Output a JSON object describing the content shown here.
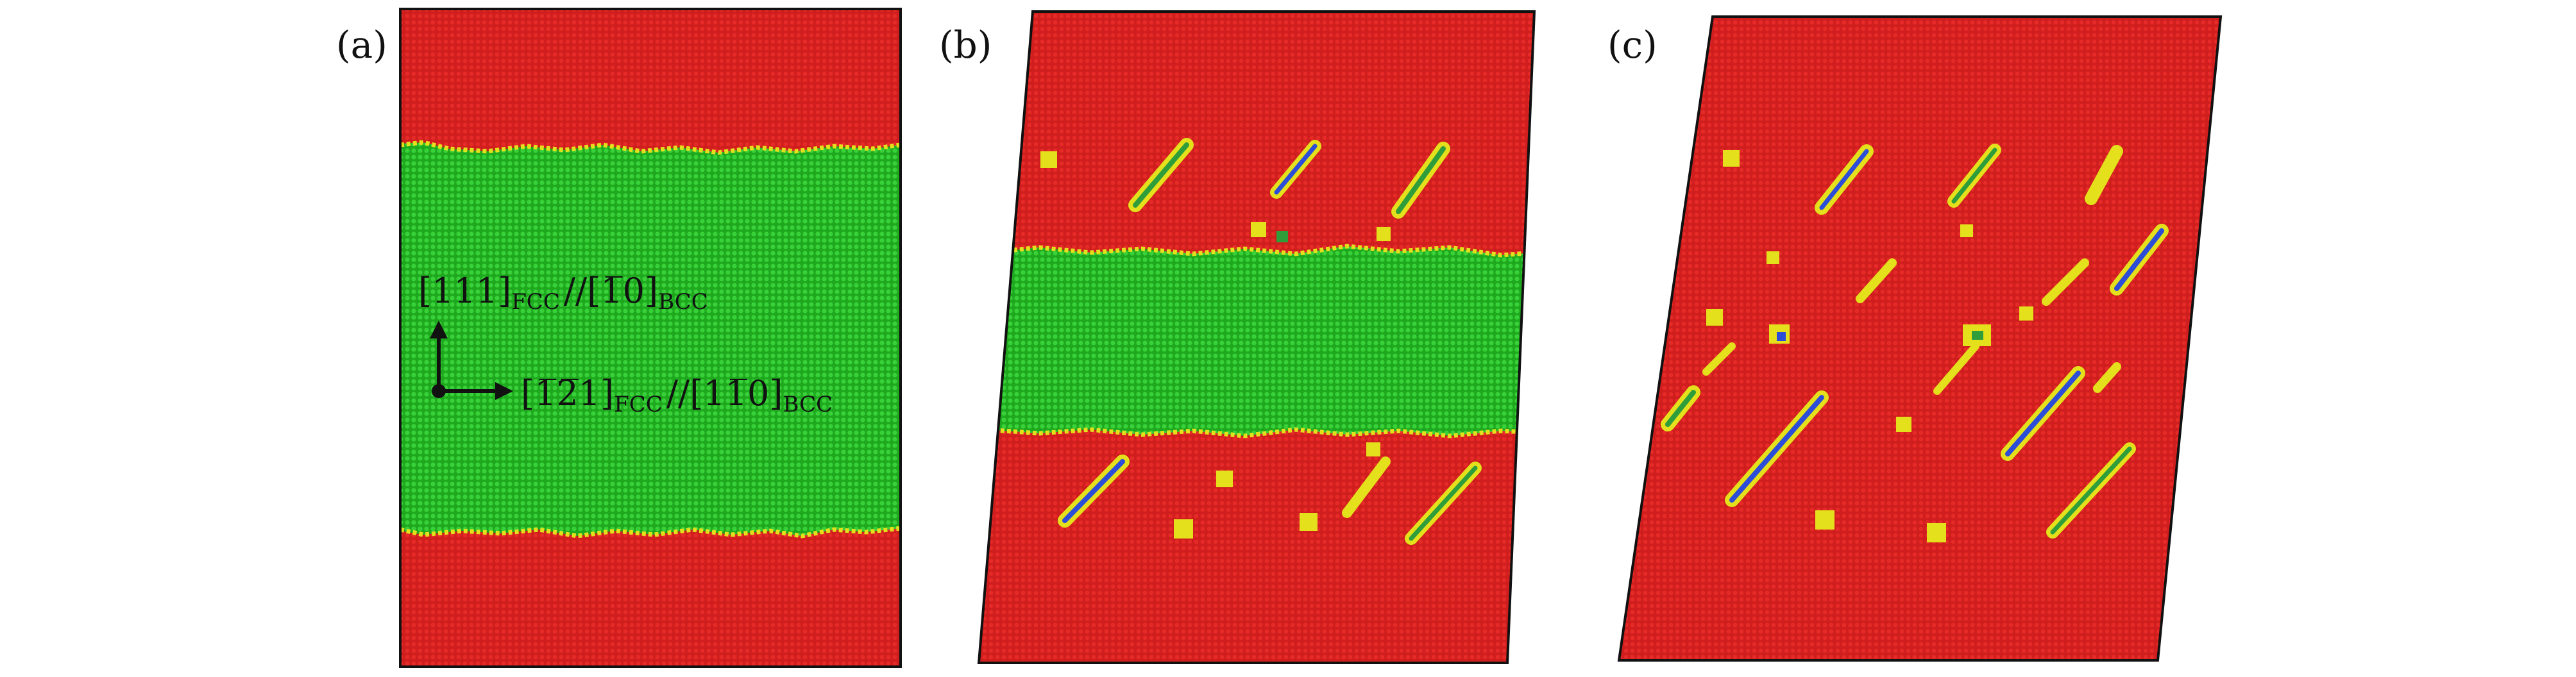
{
  "figure": {
    "panels": [
      {
        "label": "(a)"
      },
      {
        "label": "(b)"
      },
      {
        "label": "(c)"
      }
    ],
    "orientation": {
      "vertical": {
        "miller": "[111]",
        "sub1": "FCC",
        "sep": "//",
        "miller2": "[1̅0]",
        "sub2": "BCC"
      },
      "horizontal": {
        "miller": "[1̅2̅1]",
        "sub1": "FCC",
        "sep": "//",
        "miller2": "[11̅0]",
        "sub2": "BCC"
      }
    },
    "colors": {
      "fcc": "#d9201f",
      "bcc": "#22c022",
      "interface": "#e7e21d",
      "defect_blue": "#2b4dd8",
      "defect_green": "#3aa63a"
    }
  }
}
